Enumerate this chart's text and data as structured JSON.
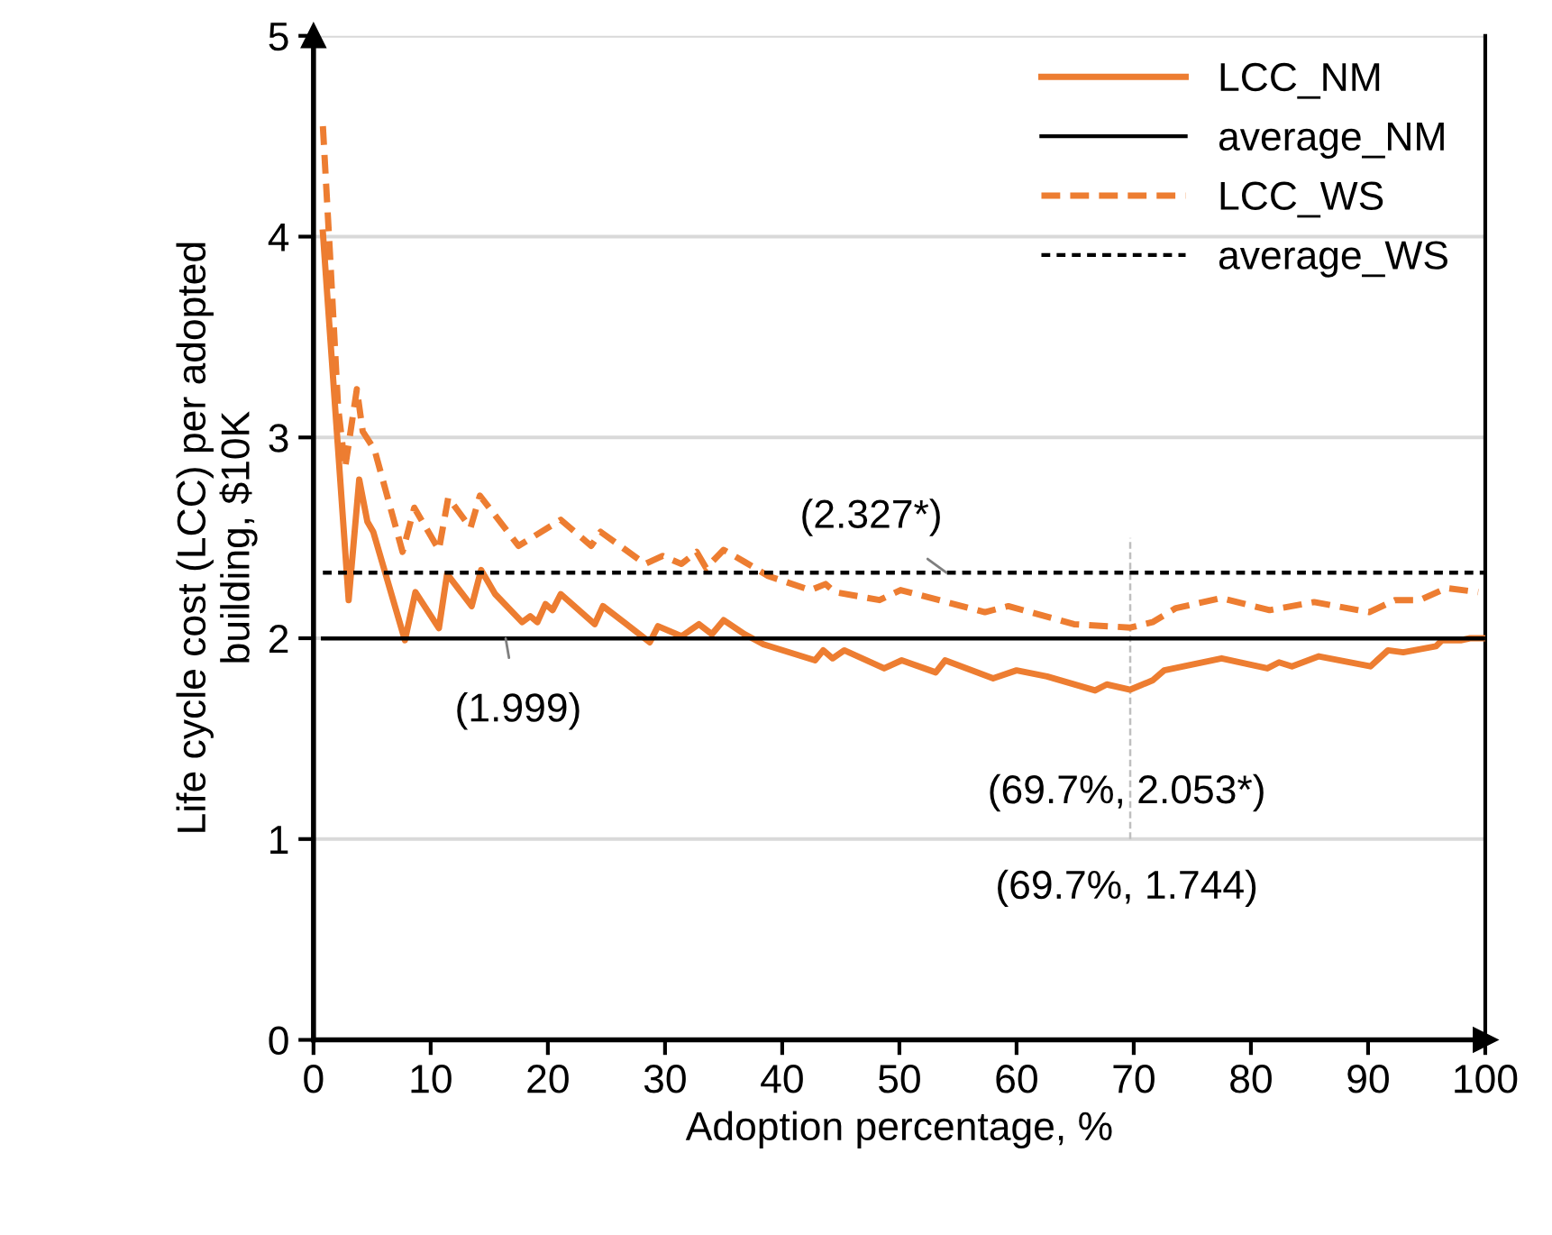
{
  "chart_data": {
    "type": "line",
    "xlabel": "Adoption percentage, %",
    "ylabel": "Life cycle cost (LCC) per adopted\nbuilding, $10K",
    "xlim": [
      0,
      100
    ],
    "xticks": [
      0,
      10,
      20,
      30,
      40,
      50,
      60,
      70,
      80,
      90,
      100
    ],
    "ylim": [
      0,
      5
    ],
    "yticks": [
      0,
      1,
      2,
      3,
      4,
      5
    ],
    "grid": "y",
    "legend": "top right",
    "marker": "none",
    "series": [
      {
        "name": "LCC_NM",
        "color": "#ed7d31",
        "line_style": "solid",
        "x": [
          0.8,
          3.0,
          3.9,
          4.6,
          5.1,
          7.8,
          8.7,
          10.7,
          11.4,
          13.5,
          14.3,
          15.5,
          17.8,
          18.5,
          19.1,
          19.8,
          20.4,
          21.1,
          24.0,
          24.7,
          26.5,
          28.7,
          29.4,
          31.4,
          32.9,
          34.0,
          35.0,
          36.8,
          38.4,
          42.8,
          43.5,
          44.3,
          45.3,
          48.7,
          50.2,
          53.1,
          53.9,
          58.0,
          60.0,
          62.6,
          66.7,
          67.7,
          69.7,
          71.6,
          72.6,
          77.5,
          81.4,
          82.4,
          83.5,
          85.8,
          90.2,
          91.7,
          93.0,
          95.8,
          96.3,
          97.9,
          98.7,
          100
        ],
        "values": [
          4.02,
          2.19,
          2.79,
          2.58,
          2.53,
          1.99,
          2.23,
          2.05,
          2.32,
          2.16,
          2.34,
          2.22,
          2.08,
          2.11,
          2.08,
          2.17,
          2.14,
          2.22,
          2.07,
          2.16,
          2.08,
          1.98,
          2.06,
          2.01,
          2.07,
          2.02,
          2.09,
          2.02,
          1.97,
          1.89,
          1.94,
          1.9,
          1.94,
          1.85,
          1.89,
          1.83,
          1.89,
          1.8,
          1.84,
          1.81,
          1.74,
          1.77,
          1.744,
          1.79,
          1.84,
          1.9,
          1.85,
          1.88,
          1.86,
          1.91,
          1.86,
          1.94,
          1.93,
          1.96,
          1.99,
          1.99,
          2.0,
          2.0
        ]
      },
      {
        "name": "average_NM",
        "color": "#000000",
        "line_style": "solid",
        "x": [
          0.8,
          100
        ],
        "values": [
          1.999,
          1.999
        ]
      },
      {
        "name": "LCC_WS",
        "color": "#ed7d31",
        "line_style": "dashed",
        "x": [
          0.8,
          1.4,
          2.1,
          2.7,
          3.7,
          4.2,
          5.2,
          7.6,
          8.6,
          10.7,
          11.5,
          13.4,
          14.2,
          17.5,
          21.1,
          23.7,
          24.5,
          28.3,
          29.8,
          31.4,
          32.7,
          33.5,
          35.0,
          36.8,
          38.8,
          42.4,
          43.7,
          44.5,
          48.3,
          50.1,
          57.3,
          59.3,
          64.9,
          69.7,
          71.6,
          73.6,
          77.5,
          81.6,
          85.4,
          90.1,
          92.3,
          94.4,
          96.7,
          99.4
        ],
        "values": [
          4.55,
          3.92,
          3.15,
          2.85,
          3.24,
          3.03,
          2.94,
          2.43,
          2.65,
          2.44,
          2.7,
          2.55,
          2.71,
          2.46,
          2.59,
          2.46,
          2.53,
          2.37,
          2.41,
          2.37,
          2.43,
          2.35,
          2.44,
          2.38,
          2.31,
          2.24,
          2.27,
          2.23,
          2.19,
          2.24,
          2.13,
          2.16,
          2.07,
          2.053,
          2.08,
          2.15,
          2.2,
          2.14,
          2.18,
          2.13,
          2.19,
          2.19,
          2.25,
          2.23
        ]
      },
      {
        "name": "average_WS",
        "color": "#000000",
        "line_style": "dashed",
        "x": [
          0.8,
          100
        ],
        "values": [
          2.327,
          2.327
        ]
      }
    ],
    "ref_lines": [
      {
        "axis": "x",
        "value": 69.7,
        "label": null,
        "color": "#bfbfbf",
        "line_style": "dashed"
      }
    ],
    "annotations": [
      {
        "text": "(2.327*)",
        "x": 54,
        "y": 2.327
      },
      {
        "text": "(1.999)",
        "x": 16.4,
        "y": 1.999
      },
      "(69.7%, 2.053*)",
      "(69.7%, 1.744)"
    ]
  }
}
